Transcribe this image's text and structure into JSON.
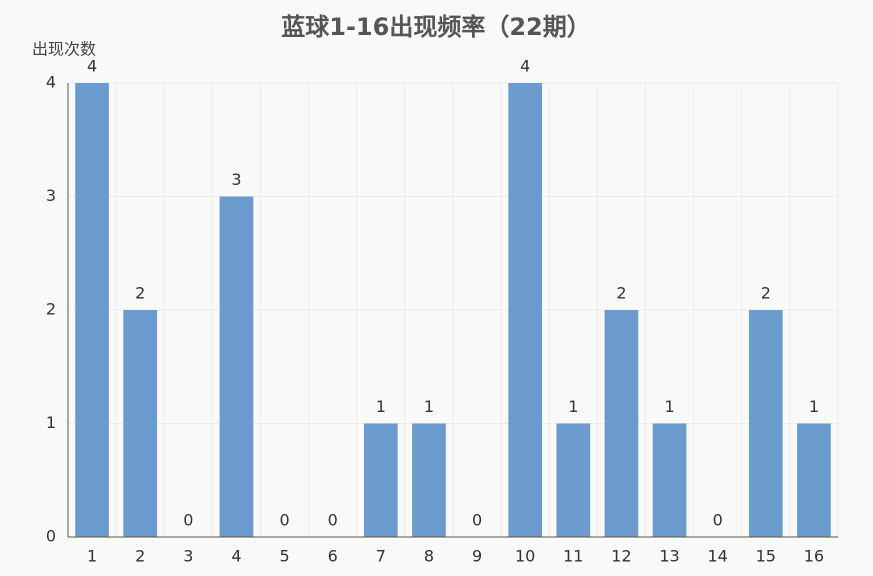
{
  "chart_data": {
    "type": "bar",
    "title": "蓝球1-16出现频率（22期）",
    "y_label": "出现次数",
    "categories": [
      "1",
      "2",
      "3",
      "4",
      "5",
      "6",
      "7",
      "8",
      "9",
      "10",
      "11",
      "12",
      "13",
      "14",
      "15",
      "16"
    ],
    "values": [
      4,
      2,
      0,
      3,
      0,
      0,
      1,
      1,
      0,
      4,
      1,
      2,
      1,
      0,
      2,
      1
    ],
    "color": "#6b9bcc",
    "ylim": [
      0,
      4
    ],
    "yticks": [
      0,
      1,
      2,
      3,
      4
    ],
    "grid": true
  }
}
